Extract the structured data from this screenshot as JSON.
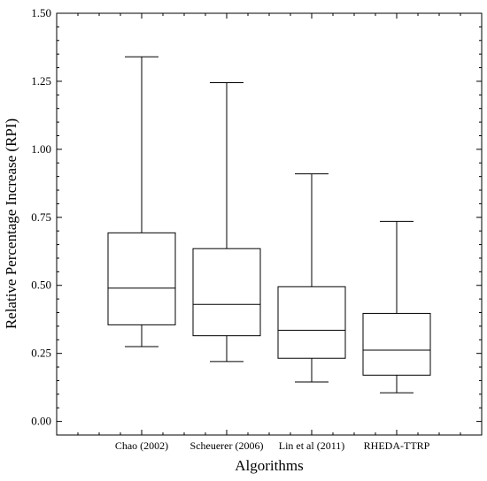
{
  "chart_data": {
    "type": "boxplot",
    "xlabel": "Algorithms",
    "ylabel": "Relative Percentage Increase (RPI)",
    "ylim": [
      -0.05,
      1.5
    ],
    "yticks": [
      "0.00",
      "0.25",
      "0.50",
      "0.75",
      "1.00",
      "1.25",
      "1.50"
    ],
    "grid": false,
    "categories": [
      "Chao (2002)",
      "Scheuerer (2006)",
      "Lin et al (2011)",
      "RHEDA-TTRP"
    ],
    "boxes": [
      {
        "name": "Chao (2002)",
        "min": 0.275,
        "q1": 0.355,
        "median": 0.49,
        "q3": 0.693,
        "max": 1.34
      },
      {
        "name": "Scheuerer (2006)",
        "min": 0.22,
        "q1": 0.315,
        "median": 0.43,
        "q3": 0.635,
        "max": 1.245
      },
      {
        "name": "Lin et al (2011)",
        "min": 0.145,
        "q1": 0.232,
        "median": 0.335,
        "q3": 0.495,
        "max": 0.91
      },
      {
        "name": "RHEDA-TTRP",
        "min": 0.105,
        "q1": 0.17,
        "median": 0.262,
        "q3": 0.397,
        "max": 0.735
      }
    ]
  }
}
